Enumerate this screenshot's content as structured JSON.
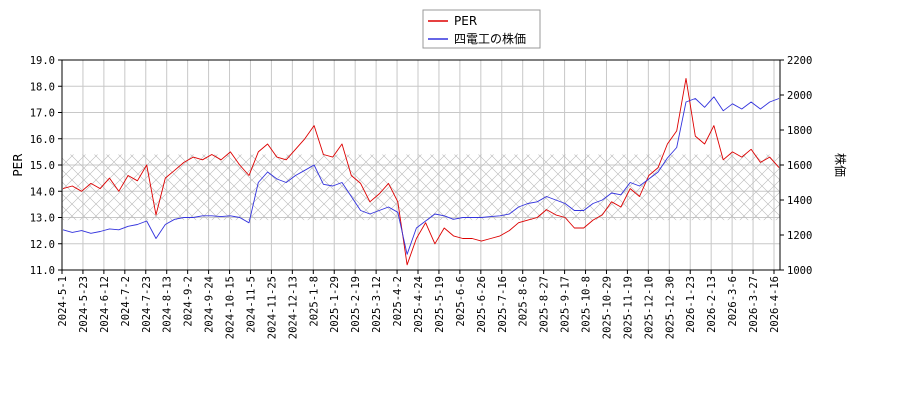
{
  "chart_data": {
    "type": "line",
    "title": "",
    "xlabel": "",
    "ylabel_left": "PER",
    "ylabel_right": "株価",
    "ylim_left": [
      11.0,
      19.0
    ],
    "ylim_right": [
      1000,
      2200
    ],
    "yticks_left": [
      "11.0",
      "12.0",
      "13.0",
      "14.0",
      "15.0",
      "16.0",
      "17.0",
      "18.0",
      "19.0"
    ],
    "yticks_right": [
      "1000",
      "1200",
      "1400",
      "1600",
      "1800",
      "2000",
      "2200"
    ],
    "xticks": [
      "2024-5-1",
      "2024-5-23",
      "2024-6-12",
      "2024-7-2",
      "2024-7-23",
      "2024-8-13",
      "2024-9-2",
      "2024-9-24",
      "2024-10-15",
      "2024-11-5",
      "2024-11-25",
      "2024-12-13",
      "2025-1-8",
      "2025-1-29",
      "2025-2-19",
      "2025-3-12",
      "2025-4-2",
      "2025-4-24",
      "2025-5-19",
      "2025-6-6",
      "2025-6-26",
      "2025-7-16",
      "2025-8-6",
      "2025-8-27",
      "2025-9-17",
      "2025-10-8",
      "2025-10-29",
      "2025-11-19",
      "2025-12-10",
      "2025-12-30",
      "2026-1-23",
      "2026-2-13",
      "2026-3-6",
      "2026-3-27",
      "2026-4-16"
    ],
    "hatch_band_left": [
      12.9,
      15.4
    ],
    "grid": true,
    "legend_position": "top-center",
    "series": [
      {
        "name": "PER",
        "axis": "left",
        "color": "#dd0000",
        "values": [
          14.1,
          14.2,
          14.0,
          14.3,
          14.1,
          14.5,
          14.0,
          14.6,
          14.4,
          15.0,
          13.1,
          14.5,
          14.8,
          15.1,
          15.3,
          15.2,
          15.4,
          15.2,
          15.5,
          15.0,
          14.6,
          15.5,
          15.8,
          15.3,
          15.2,
          15.6,
          16.0,
          16.5,
          15.4,
          15.3,
          15.8,
          14.6,
          14.3,
          13.6,
          13.9,
          14.3,
          13.6,
          11.2,
          12.2,
          12.8,
          12.0,
          12.6,
          12.3,
          12.2,
          12.2,
          12.1,
          12.2,
          12.3,
          12.5,
          12.8,
          12.9,
          13.0,
          13.3,
          13.1,
          13.0,
          12.6,
          12.6,
          12.9,
          13.1,
          13.6,
          13.4,
          14.1,
          13.8,
          14.6,
          14.9,
          15.8,
          16.3,
          18.3,
          16.1,
          15.8,
          16.5,
          15.2,
          15.5,
          15.3,
          15.6,
          15.1,
          15.3,
          14.9
        ]
      },
      {
        "name": "四電工の株価",
        "axis": "right",
        "color": "#3333dd",
        "values": [
          1230,
          1215,
          1225,
          1210,
          1220,
          1235,
          1230,
          1250,
          1260,
          1280,
          1180,
          1260,
          1290,
          1300,
          1300,
          1310,
          1310,
          1305,
          1310,
          1300,
          1270,
          1500,
          1560,
          1520,
          1500,
          1540,
          1570,
          1600,
          1490,
          1480,
          1500,
          1420,
          1340,
          1320,
          1340,
          1360,
          1330,
          1090,
          1240,
          1280,
          1320,
          1310,
          1290,
          1300,
          1300,
          1300,
          1305,
          1310,
          1320,
          1360,
          1380,
          1390,
          1420,
          1400,
          1380,
          1340,
          1340,
          1380,
          1400,
          1440,
          1430,
          1500,
          1480,
          1520,
          1560,
          1640,
          1700,
          1960,
          1980,
          1930,
          1990,
          1910,
          1950,
          1920,
          1960,
          1920,
          1960,
          1980
        ]
      }
    ]
  }
}
